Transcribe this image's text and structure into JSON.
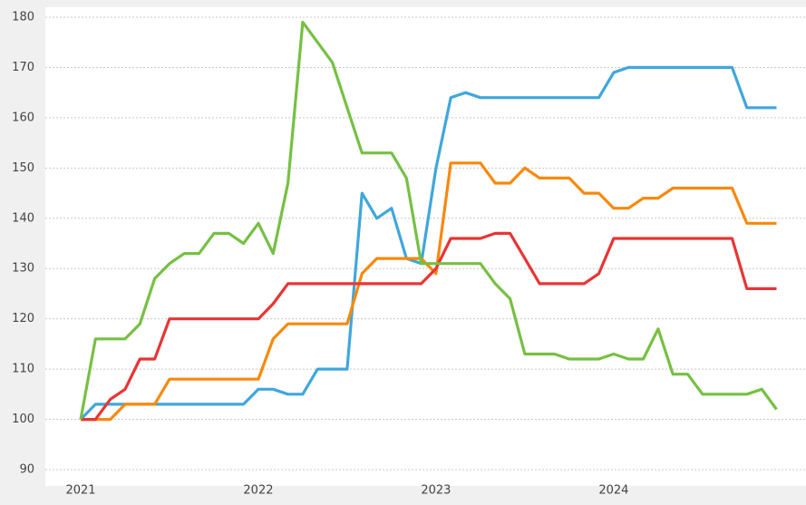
{
  "chart_data": {
    "type": "line",
    "categories": [
      "2021",
      null,
      null,
      null,
      null,
      null,
      null,
      null,
      null,
      null,
      null,
      null,
      "2022",
      null,
      null,
      null,
      null,
      null,
      null,
      null,
      null,
      null,
      null,
      null,
      "2023",
      null,
      null,
      null,
      null,
      null,
      null,
      null,
      null,
      null,
      null,
      null,
      "2024",
      null,
      null,
      null,
      null,
      null,
      null,
      null,
      null,
      null,
      null,
      null
    ],
    "series": [
      {
        "color": "#3fa7dc",
        "values": [
          100,
          103,
          103,
          103,
          103,
          103,
          103,
          103,
          103,
          103,
          103,
          103,
          106,
          106,
          105,
          105,
          110,
          110,
          110,
          145,
          140,
          142,
          132,
          131,
          150,
          164,
          165,
          164,
          164,
          164,
          164,
          164,
          164,
          164,
          164,
          164,
          169,
          170,
          170,
          170,
          170,
          170,
          170,
          170,
          170,
          162,
          162,
          162
        ]
      },
      {
        "color": "#f7890c",
        "values": [
          100,
          100,
          100,
          103,
          103,
          103,
          108,
          108,
          108,
          108,
          108,
          108,
          108,
          116,
          119,
          119,
          119,
          119,
          119,
          129,
          132,
          132,
          132,
          132,
          129,
          151,
          151,
          151,
          147,
          147,
          150,
          148,
          148,
          148,
          145,
          145,
          142,
          142,
          144,
          144,
          146,
          146,
          146,
          146,
          146,
          139,
          139,
          139
        ]
      },
      {
        "color": "#e83535",
        "values": [
          100,
          100,
          104,
          106,
          112,
          112,
          120,
          120,
          120,
          120,
          120,
          120,
          120,
          123,
          127,
          127,
          127,
          127,
          127,
          127,
          127,
          127,
          127,
          127,
          130,
          136,
          136,
          136,
          137,
          137,
          132,
          127,
          127,
          127,
          127,
          129,
          136,
          136,
          136,
          136,
          136,
          136,
          136,
          136,
          136,
          126,
          126,
          126
        ]
      },
      {
        "color": "#76c043",
        "values": [
          100,
          116,
          116,
          116,
          119,
          128,
          131,
          133,
          133,
          137,
          137,
          135,
          139,
          133,
          147,
          179,
          175,
          171,
          162,
          153,
          153,
          153,
          148,
          131,
          131,
          131,
          131,
          131,
          127,
          124,
          113,
          113,
          113,
          112,
          112,
          112,
          113,
          112,
          112,
          118,
          109,
          109,
          105,
          105,
          105,
          105,
          106,
          102
        ]
      }
    ],
    "ylim": [
      90,
      180
    ],
    "yticks": [
      90,
      100,
      110,
      120,
      130,
      140,
      150,
      160,
      170,
      180
    ],
    "grid": true
  }
}
